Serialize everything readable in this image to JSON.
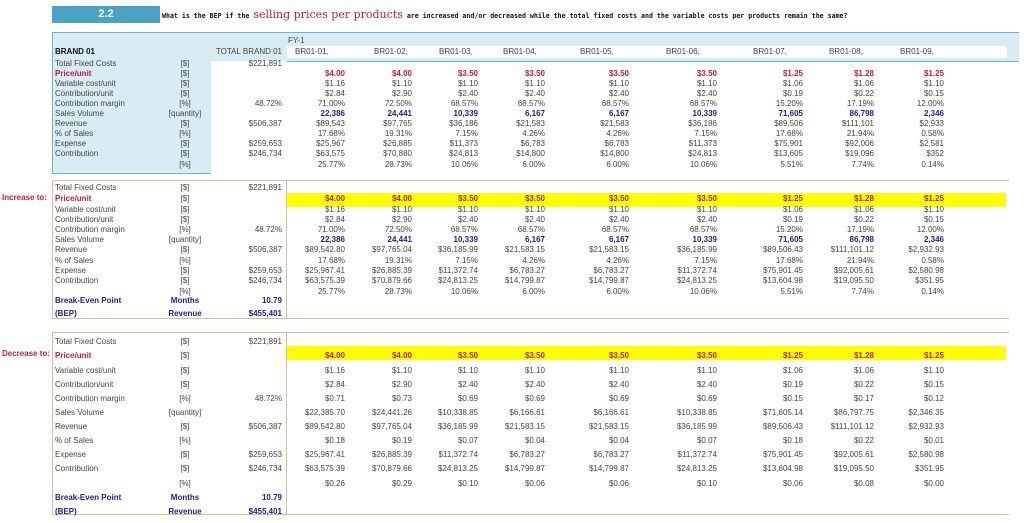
{
  "question": {
    "number": "2.2",
    "text_before": "What is the BEP if the ",
    "highlight": "selling prices per products",
    "text_after": " are increased and/or decreased while the total fixed costs and the variable costs per products remain the same?"
  },
  "top_table": {
    "brand_label": "BRAND 01",
    "total_header": "TOTAL BRAND 01",
    "period": "FY-1",
    "columns": [
      "BR01-01,",
      "BR01-02,",
      "BR01-03,",
      "BR01-04,",
      "BR01-05,",
      "BR01-06,",
      "BR01-07,",
      "BR01-08,",
      "BR01-09,"
    ],
    "rows": [
      {
        "label": "Total Fixed Costs",
        "unit": "[$]",
        "total": "$221,891",
        "values": [
          "",
          "",
          "",
          "",
          "",
          "",
          "",
          "",
          ""
        ]
      },
      {
        "label": "Price/unit",
        "unit": "[$]",
        "total": "",
        "values": [
          "$4.00",
          "$4.00",
          "$3.50",
          "$3.50",
          "$3.50",
          "$3.50",
          "$1.25",
          "$1.28",
          "$1.25"
        ]
      },
      {
        "label": "Variable cost/unit",
        "unit": "[$]",
        "total": "",
        "values": [
          "$1.16",
          "$1.10",
          "$1.10",
          "$1.10",
          "$1.10",
          "$1.10",
          "$1.06",
          "$1.06",
          "$1.10"
        ]
      },
      {
        "label": "Contribution/unit",
        "unit": "[$]",
        "total": "",
        "values": [
          "$2.84",
          "$2.90",
          "$2.40",
          "$2.40",
          "$2.40",
          "$2.40",
          "$0.19",
          "$0.22",
          "$0.15"
        ]
      },
      {
        "label": "Contribution margin",
        "unit": "[%]",
        "total": "48.72%",
        "values": [
          "71.00%",
          "72.50%",
          "68.57%",
          "68.57%",
          "68.57%",
          "68.57%",
          "15.20%",
          "17.19%",
          "12.00%"
        ]
      },
      {
        "label": "Sales Volume",
        "unit": "[quantity]",
        "total": "",
        "values": [
          "22,386",
          "24,441",
          "10,339",
          "6,167",
          "6,167",
          "10,339",
          "71,605",
          "86,798",
          "2,346"
        ]
      },
      {
        "label": "Revenue",
        "unit": "[$]",
        "total": "$506,387",
        "values": [
          "$89,543",
          "$97,765",
          "$36,186",
          "$21,583",
          "$21,583",
          "$36,186",
          "$89,506",
          "$111,101",
          "$2,933"
        ]
      },
      {
        "label": "% of Sales",
        "unit": "[%]",
        "total": "",
        "values": [
          "17.68%",
          "19.31%",
          "7.15%",
          "4.26%",
          "4.26%",
          "7.15%",
          "17.68%",
          "21.94%",
          "0.58%"
        ]
      },
      {
        "label": "Expense",
        "unit": "[$]",
        "total": "$259,653",
        "values": [
          "$25,967",
          "$26,885",
          "$11,373",
          "$6,783",
          "$6,783",
          "$11,373",
          "$75,901",
          "$92,006",
          "$2,581"
        ]
      },
      {
        "label": "Contribution",
        "unit": "[$]",
        "total": "$246,734",
        "values": [
          "$63,575",
          "$70,880",
          "$24,813",
          "$14,800",
          "$14,800",
          "$24,813",
          "$13,605",
          "$19,096",
          "$352"
        ]
      },
      {
        "label": "",
        "unit": "[%]",
        "total": "",
        "values": [
          "25.77%",
          "28.73%",
          "10.06%",
          "6.00%",
          "6.00%",
          "10.06%",
          "5.51%",
          "7.74%",
          "0.14%"
        ]
      }
    ]
  },
  "increase_section": {
    "side_label": "Increase to:",
    "rows": [
      {
        "label": "Total Fixed Costs",
        "unit": "[$]",
        "total": "$221,891",
        "values": [
          "",
          "",
          "",
          "",
          "",
          "",
          "",
          "",
          ""
        ]
      },
      {
        "label": "Price/unit",
        "unit": "[$]",
        "total": "",
        "values": [
          "$4.00",
          "$4.00",
          "$3.50",
          "$3.50",
          "$3.50",
          "$3.50",
          "$1.25",
          "$1.28",
          "$1.25"
        ]
      },
      {
        "label": "Variable cost/unit",
        "unit": "[$]",
        "total": "",
        "values": [
          "$1.16",
          "$1.10",
          "$1.10",
          "$1.10",
          "$1.10",
          "$1.10",
          "$1.06",
          "$1.06",
          "$1.10"
        ]
      },
      {
        "label": "Contribution/unit",
        "unit": "[$]",
        "total": "",
        "values": [
          "$2.84",
          "$2.90",
          "$2.40",
          "$2.40",
          "$2.40",
          "$2.40",
          "$0.19",
          "$0.22",
          "$0.15"
        ]
      },
      {
        "label": "Contribution margin",
        "unit": "[%]",
        "total": "48.72%",
        "values": [
          "71.00%",
          "72.50%",
          "68.57%",
          "68.57%",
          "68.57%",
          "68.57%",
          "15.20%",
          "17.19%",
          "12.00%"
        ]
      },
      {
        "label": "Sales Volume",
        "unit": "[quantity]",
        "total": "",
        "values": [
          "22,386",
          "24,441",
          "10,339",
          "6,167",
          "6,167",
          "10,339",
          "71,605",
          "86,798",
          "2,346"
        ]
      },
      {
        "label": "Revenue",
        "unit": "[$]",
        "total": "$506,387",
        "values": [
          "$89,542.80",
          "$97,765.04",
          "$36,185.99",
          "$21,583.15",
          "$21,583.15",
          "$36,185.99",
          "$89,506.43",
          "$111,101.12",
          "$2,932.93"
        ]
      },
      {
        "label": "% of Sales",
        "unit": "[%]",
        "total": "",
        "values": [
          "17.68%",
          "19.31%",
          "7.15%",
          "4.26%",
          "4.26%",
          "7.15%",
          "17.68%",
          "21.94%",
          "0.58%"
        ]
      },
      {
        "label": "Expense",
        "unit": "[$]",
        "total": "$259,653",
        "values": [
          "$25,967.41",
          "$26,885.39",
          "$11,372.74",
          "$6,783.27",
          "$6,783.27",
          "$11,372.74",
          "$75,901.45",
          "$92,005.61",
          "$2,580.98"
        ]
      },
      {
        "label": "Contribution",
        "unit": "[$]",
        "total": "$246,734",
        "values": [
          "$63,575.39",
          "$70,879.66",
          "$24,813.25",
          "$14,799.87",
          "$14,799.87",
          "$24,813.25",
          "$13,604.98",
          "$19,095.50",
          "$351.95"
        ]
      },
      {
        "label": "",
        "unit": "[%]",
        "total": "",
        "values": [
          "25.77%",
          "28.73%",
          "10.06%",
          "6.00%",
          "6.00%",
          "10.06%",
          "5.51%",
          "7.74%",
          "0.14%"
        ]
      }
    ],
    "bep": {
      "label1": "Break-Even Point",
      "unit1": "Months",
      "value1": "10.79",
      "label2": "(BEP)",
      "unit2": "Revenue",
      "value2": "$455,401"
    }
  },
  "decrease_section": {
    "side_label": "Decrease to:",
    "rows": [
      {
        "label": "Total Fixed Costs",
        "unit": "[$]",
        "total": "$221,891",
        "values": [
          "",
          "",
          "",
          "",
          "",
          "",
          "",
          "",
          ""
        ]
      },
      {
        "label": "Price/unit",
        "unit": "[$]",
        "total": "",
        "values": [
          "$4.00",
          "$4.00",
          "$3.50",
          "$3.50",
          "$3.50",
          "$3.50",
          "$1.25",
          "$1.28",
          "$1.25"
        ]
      },
      {
        "label": "Variable cost/unit",
        "unit": "[$]",
        "total": "",
        "values": [
          "$1.16",
          "$1.10",
          "$1.10",
          "$1.10",
          "$1.10",
          "$1.10",
          "$1.06",
          "$1.06",
          "$1.10"
        ]
      },
      {
        "label": "Contribution/unit",
        "unit": "[$]",
        "total": "",
        "values": [
          "$2.84",
          "$2.90",
          "$2.40",
          "$2.40",
          "$2.40",
          "$2.40",
          "$0.19",
          "$0.22",
          "$0.15"
        ]
      },
      {
        "label": "Contribution margin",
        "unit": "[%]",
        "total": "48.72%",
        "values": [
          "$0.71",
          "$0.73",
          "$0.69",
          "$0.69",
          "$0.69",
          "$0.69",
          "$0.15",
          "$0.17",
          "$0.12"
        ]
      },
      {
        "label": "Sales Volume",
        "unit": "[quantity]",
        "total": "",
        "values": [
          "$22,385.70",
          "$24,441.26",
          "$10,338.85",
          "$6,166.61",
          "$6,166.61",
          "$10,338.85",
          "$71,605.14",
          "$86,797.75",
          "$2,346.35"
        ]
      },
      {
        "label": "Revenue",
        "unit": "[$]",
        "total": "$506,387",
        "values": [
          "$89,542.80",
          "$97,765.04",
          "$36,185.99",
          "$21,583.15",
          "$21,583.15",
          "$36,185.99",
          "$89,506.43",
          "$111,101.12",
          "$2,932.93"
        ]
      },
      {
        "label": "% of Sales",
        "unit": "[%]",
        "total": "",
        "values": [
          "$0.18",
          "$0.19",
          "$0.07",
          "$0.04",
          "$0.04",
          "$0.07",
          "$0.18",
          "$0.22",
          "$0.01"
        ]
      },
      {
        "label": "Expense",
        "unit": "[$]",
        "total": "$259,653",
        "values": [
          "$25,967.41",
          "$26,885.39",
          "$11,372.74",
          "$6,783.27",
          "$6,783.27",
          "$11,372.74",
          "$75,901.45",
          "$92,005.61",
          "$2,580.98"
        ]
      },
      {
        "label": "Contribution",
        "unit": "[$]",
        "total": "$246,734",
        "values": [
          "$63,575.39",
          "$70,879.66",
          "$24,813.25",
          "$14,799.87",
          "$14,799.87",
          "$24,813.25",
          "$13,604.98",
          "$19,095.50",
          "$351.95"
        ]
      },
      {
        "label": "",
        "unit": "[%]",
        "total": "",
        "values": [
          "$0.26",
          "$0.29",
          "$0.10",
          "$0.06",
          "$0.06",
          "$0.10",
          "$0.06",
          "$0.08",
          "$0.00"
        ]
      }
    ],
    "bep": {
      "label1": "Break-Even Point",
      "unit1": "Months",
      "value1": "10.79",
      "label2": "(BEP)",
      "unit2": "Revenue",
      "value2": "$455,401"
    }
  },
  "colors": {
    "header_blue": "#4aa3c4",
    "top_panel_bg": "#d8ecf3",
    "price_red": "#c41e3a",
    "volume_blue": "#1a1f8f",
    "highlight_yellow": "#ffff00",
    "section_border": "#d4c09a"
  }
}
